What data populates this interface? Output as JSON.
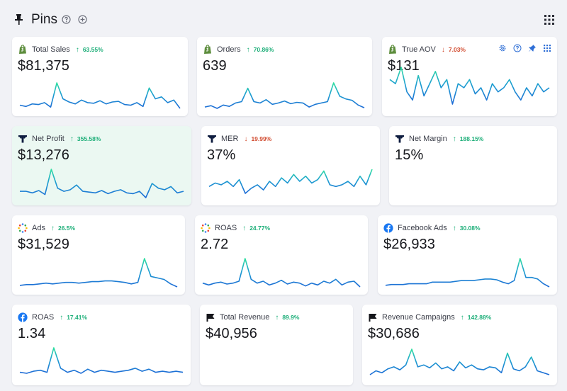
{
  "header": {
    "title": "Pins"
  },
  "cards": [
    {
      "name": "Total Sales",
      "value": "$81,375",
      "change": "63.55%",
      "dir": "up",
      "logo": "shopify-logo",
      "spark": [
        20,
        18,
        22,
        21,
        24,
        17,
        55,
        30,
        25,
        22,
        28,
        24,
        23,
        27,
        22,
        25,
        26,
        21,
        20,
        24,
        18,
        47,
        30,
        33,
        24,
        28,
        15
      ]
    },
    {
      "name": "Orders",
      "value": "639",
      "change": "70.86%",
      "dir": "up",
      "logo": "shopify-logo",
      "spark": [
        22,
        24,
        20,
        25,
        23,
        28,
        30,
        50,
        30,
        28,
        33,
        26,
        28,
        31,
        27,
        29,
        28,
        22,
        26,
        28,
        30,
        58,
        38,
        34,
        32,
        25,
        21
      ]
    },
    {
      "name": "True AOV",
      "value": "$131",
      "change": "7.03%",
      "dir": "down",
      "logo": "shopify-logo",
      "spark": [
        42,
        40,
        48,
        36,
        32,
        44,
        34,
        40,
        46,
        38,
        42,
        30,
        40,
        38,
        42,
        35,
        38,
        32,
        40,
        36,
        38,
        42,
        36,
        32,
        38,
        34,
        40,
        36,
        38
      ]
    },
    {
      "name": "Net Profit",
      "value": "$13,276",
      "change": "355.58%",
      "dir": "up",
      "logo": "triple-whale-logo",
      "spark": [
        30,
        30,
        28,
        31,
        26,
        58,
        34,
        30,
        32,
        38,
        30,
        29,
        28,
        31,
        27,
        30,
        32,
        28,
        27,
        30,
        22,
        40,
        34,
        32,
        36,
        28,
        30
      ]
    },
    {
      "name": "MER",
      "value": "37%",
      "change": "19.99%",
      "dir": "down",
      "logo": "triple-whale-logo",
      "spark": [
        34,
        38,
        36,
        40,
        34,
        42,
        26,
        32,
        36,
        30,
        40,
        34,
        44,
        38,
        48,
        40,
        46,
        38,
        42,
        52,
        36,
        34,
        36,
        40,
        34,
        46,
        36,
        54
      ]
    },
    {
      "name": "Net Margin",
      "value": "15%",
      "change": "188.15%",
      "dir": "up",
      "logo": "triple-whale-logo",
      "spark": []
    },
    {
      "name": "Ads",
      "value": "$31,529",
      "change": "26.5%",
      "dir": "up",
      "logo": "ads-dots-logo",
      "spark": [
        24,
        25,
        25,
        26,
        27,
        26,
        27,
        28,
        28,
        27,
        28,
        29,
        29,
        30,
        30,
        29,
        28,
        26,
        28,
        60,
        36,
        34,
        32,
        26,
        22
      ]
    },
    {
      "name": "ROAS",
      "value": "2.72",
      "change": "24.77%",
      "dir": "up",
      "logo": "ads-dots-logo",
      "spark": [
        26,
        24,
        26,
        27,
        25,
        26,
        28,
        52,
        30,
        26,
        28,
        24,
        26,
        29,
        25,
        27,
        26,
        23,
        26,
        24,
        28,
        26,
        30,
        24,
        27,
        28,
        22
      ]
    },
    {
      "name": "Facebook Ads",
      "value": "$26,933",
      "change": "30.08%",
      "dir": "up",
      "logo": "facebook-logo",
      "spark": [
        24,
        25,
        25,
        25,
        26,
        26,
        26,
        26,
        28,
        28,
        28,
        28,
        29,
        30,
        30,
        30,
        31,
        32,
        32,
        31,
        28,
        26,
        30,
        58,
        34,
        34,
        32,
        26,
        22
      ]
    },
    {
      "name": "ROAS",
      "value": "1.34",
      "change": "17.41%",
      "dir": "up",
      "logo": "facebook-logo",
      "spark": [
        20,
        19,
        21,
        22,
        20,
        44,
        24,
        20,
        22,
        19,
        23,
        20,
        22,
        21,
        20,
        21,
        22,
        24,
        21,
        23,
        20,
        21,
        20,
        21,
        20
      ]
    },
    {
      "name": "Total Revenue",
      "value": "$40,956",
      "change": "89.9%",
      "dir": "up",
      "logo": "flag-logo",
      "spark": []
    },
    {
      "name": "Revenue Campaigns",
      "value": "$30,686",
      "change": "142.88%",
      "dir": "up",
      "logo": "flag-logo",
      "spark": [
        20,
        24,
        22,
        26,
        28,
        25,
        30,
        46,
        28,
        30,
        27,
        32,
        26,
        28,
        24,
        33,
        27,
        30,
        26,
        25,
        28,
        27,
        22,
        42,
        26,
        24,
        28,
        38,
        24,
        22,
        20
      ]
    }
  ]
}
